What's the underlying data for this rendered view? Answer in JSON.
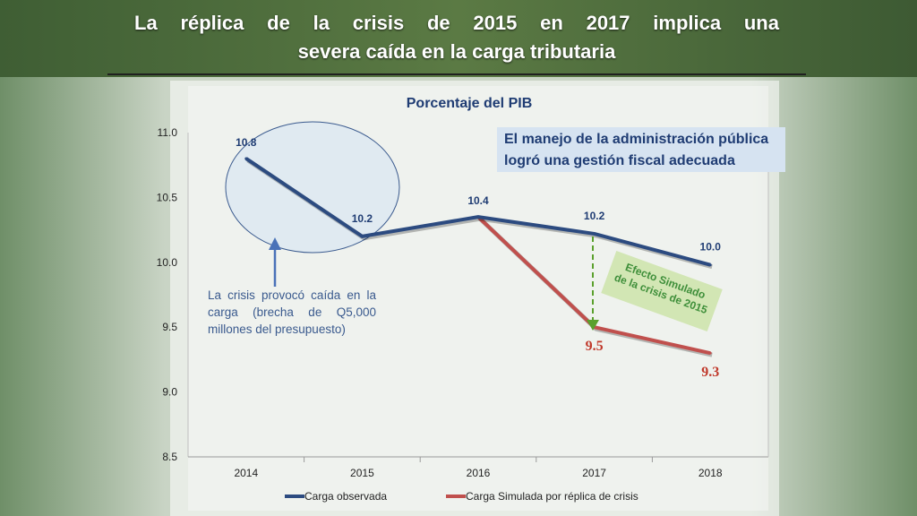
{
  "slide": {
    "title_line1": "La réplica de la crisis de 2015 en 2017 implica una",
    "title_line2": "severa caída en la carga tributaria"
  },
  "callouts": {
    "management": "El manejo de la administración pública logró una gestión fiscal adecuada",
    "crisis_note": "La crisis provocó caída en la carga (brecha de Q5,000 millones del presupuesto)",
    "effect_line1": "Efecto Simulado",
    "effect_line2": "de la crisis de 2015"
  },
  "colors": {
    "observed": "#2c4b80",
    "simulated": "#c0504d",
    "effect_arrow": "#5aa02c",
    "ellipse": "#3a5a8e"
  },
  "chart_data": {
    "type": "line",
    "title": "Porcentaje del PIB",
    "x": [
      "2014",
      "2015",
      "2016",
      "2017",
      "2018"
    ],
    "ylim": [
      8.5,
      11.0
    ],
    "yticks": [
      "11.0",
      "10.5",
      "10.0",
      "9.5",
      "9.0",
      "8.5"
    ],
    "series": [
      {
        "name": "Carga  observada",
        "values": [
          10.8,
          10.2,
          10.35,
          10.22,
          9.98
        ],
        "labels": [
          "10.8",
          "10.2",
          "10.4",
          "10.2",
          "10.0"
        ]
      },
      {
        "name": "Carga Simulada por réplica de crisis",
        "values": [
          null,
          null,
          10.35,
          9.5,
          9.3
        ],
        "labels": [
          "",
          "",
          "",
          "9.5",
          "9.3"
        ]
      }
    ],
    "legend_position": "bottom"
  }
}
